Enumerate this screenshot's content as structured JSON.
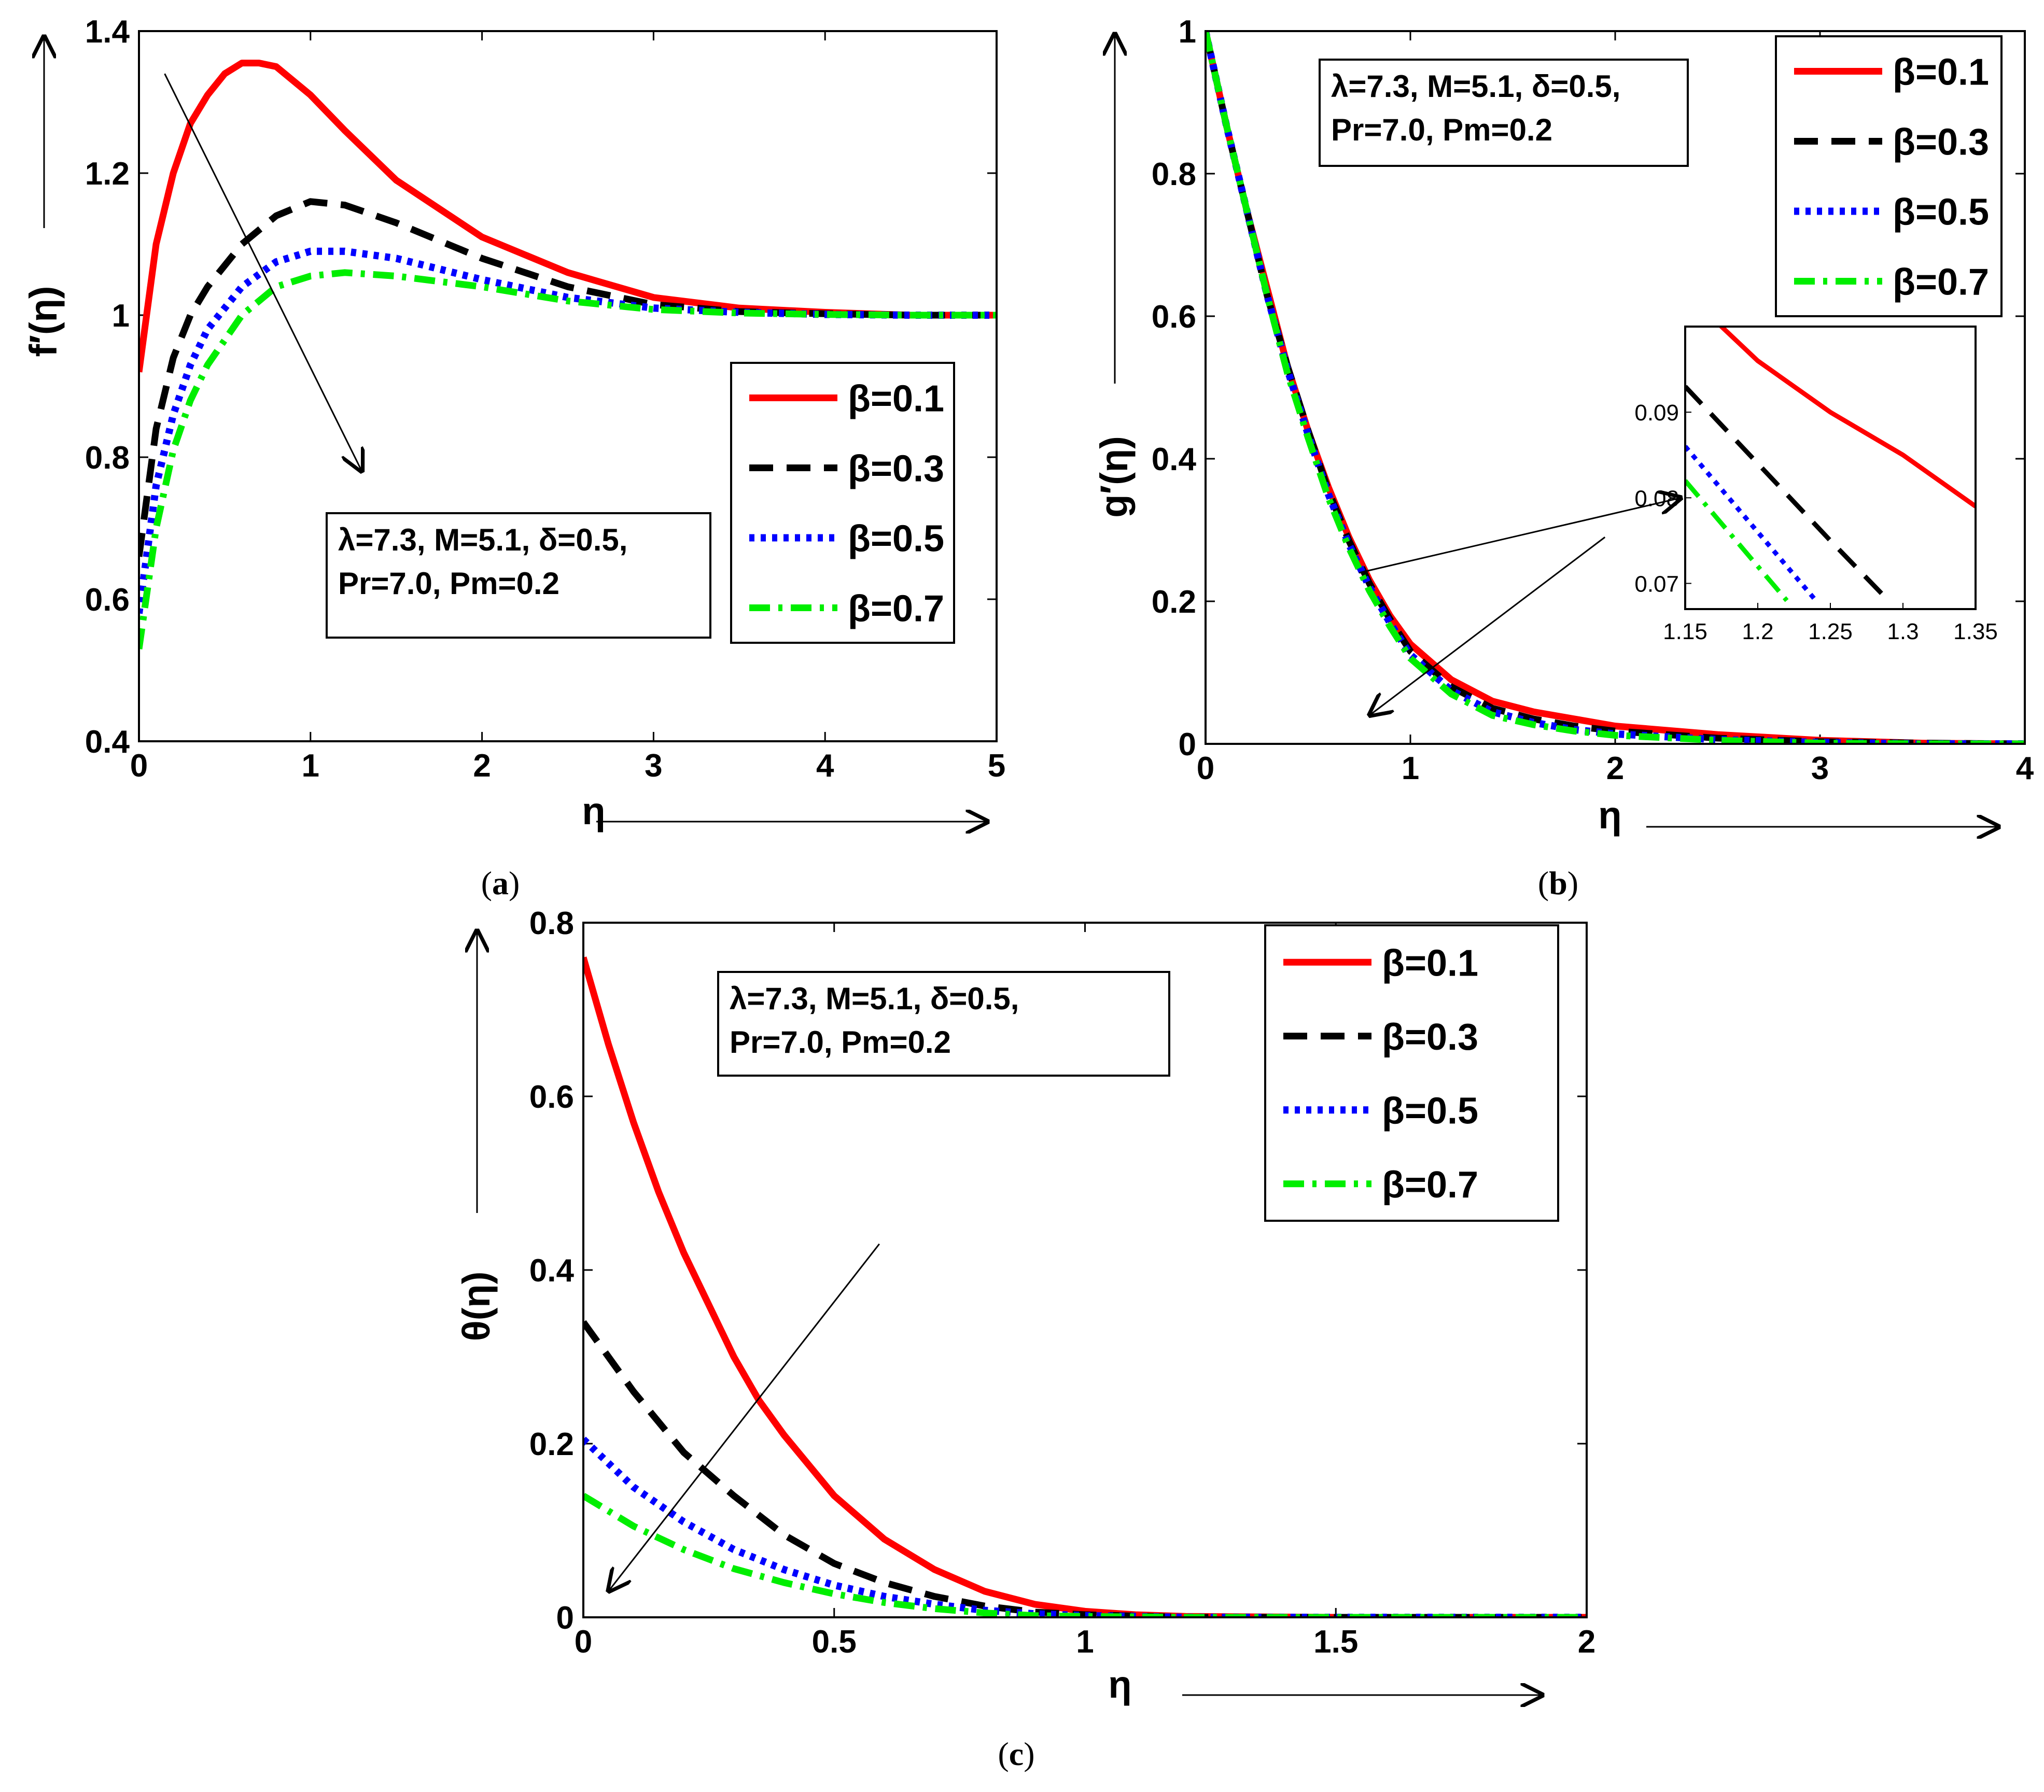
{
  "colors": {
    "beta1": "#ff0000",
    "beta3": "#000000",
    "beta5": "#0000ff",
    "beta7": "#00ee00"
  },
  "chart_data": [
    {
      "id": "a",
      "type": "line",
      "caption_letter": "a",
      "ylabel": "f′(η)",
      "xlabel": "η",
      "xlim": [
        0,
        5
      ],
      "ylim": [
        0.4,
        1.4
      ],
      "xticks": [
        "0",
        "1",
        "2",
        "3",
        "4",
        "5"
      ],
      "yticks": [
        "0.4",
        "0.6",
        "0.8",
        "1",
        "1.2",
        "1.4"
      ],
      "annotation": [
        "λ=7.3, M=5.1, δ=0.5,",
        "Pr=7.0, Pm=0.2"
      ],
      "series": [
        {
          "name": "β=0.1",
          "style": "solid",
          "color": "#ff0000",
          "x": [
            0,
            0.1,
            0.2,
            0.3,
            0.4,
            0.5,
            0.6,
            0.7,
            0.8,
            1.0,
            1.2,
            1.5,
            2.0,
            2.5,
            3.0,
            3.5,
            4.0,
            4.5,
            5.0
          ],
          "y": [
            0.92,
            1.1,
            1.2,
            1.27,
            1.31,
            1.34,
            1.355,
            1.355,
            1.35,
            1.31,
            1.26,
            1.19,
            1.11,
            1.06,
            1.025,
            1.01,
            1.004,
            1.0,
            1.0
          ]
        },
        {
          "name": "β=0.3",
          "style": "dashed",
          "color": "#000000",
          "x": [
            0,
            0.1,
            0.2,
            0.3,
            0.4,
            0.6,
            0.8,
            1.0,
            1.2,
            1.5,
            2.0,
            2.5,
            3.0,
            3.5,
            4.0,
            4.5,
            5.0
          ],
          "y": [
            0.66,
            0.84,
            0.94,
            1.0,
            1.04,
            1.1,
            1.14,
            1.16,
            1.155,
            1.13,
            1.08,
            1.04,
            1.015,
            1.005,
            1.002,
            1.0,
            1.0
          ]
        },
        {
          "name": "β=0.5",
          "style": "dotted",
          "color": "#0000ff",
          "x": [
            0,
            0.1,
            0.2,
            0.3,
            0.4,
            0.6,
            0.8,
            1.0,
            1.2,
            1.5,
            2.0,
            2.5,
            3.0,
            3.5,
            4.0,
            4.5,
            5.0
          ],
          "y": [
            0.58,
            0.76,
            0.86,
            0.93,
            0.98,
            1.04,
            1.075,
            1.09,
            1.09,
            1.08,
            1.05,
            1.025,
            1.01,
            1.004,
            1.001,
            1.0,
            1.0
          ]
        },
        {
          "name": "β=0.7",
          "style": "dashdot",
          "color": "#00ee00",
          "x": [
            0,
            0.1,
            0.2,
            0.3,
            0.4,
            0.6,
            0.8,
            1.0,
            1.2,
            1.5,
            2.0,
            2.5,
            3.0,
            3.5,
            4.0,
            4.5,
            5.0
          ],
          "y": [
            0.53,
            0.7,
            0.81,
            0.88,
            0.93,
            1.0,
            1.04,
            1.055,
            1.06,
            1.055,
            1.04,
            1.02,
            1.008,
            1.003,
            1.001,
            1.0,
            1.0
          ]
        }
      ],
      "trend_arrow": {
        "from": [
          0.15,
          1.34
        ],
        "to": [
          1.3,
          0.78
        ]
      }
    },
    {
      "id": "b",
      "type": "line",
      "caption_letter": "b",
      "ylabel": "g′(η)",
      "xlabel": "η",
      "xlim": [
        0,
        4
      ],
      "ylim": [
        0,
        1
      ],
      "xticks": [
        "0",
        "1",
        "2",
        "3",
        "4"
      ],
      "yticks": [
        "0",
        "0.2",
        "0.4",
        "0.6",
        "0.8",
        "1"
      ],
      "annotation": [
        "λ=7.3, M=5.1, δ=0.5,",
        "Pr=7.0, Pm=0.2"
      ],
      "series": [
        {
          "name": "β=0.1",
          "style": "solid",
          "color": "#ff0000",
          "x": [
            0,
            0.1,
            0.2,
            0.3,
            0.4,
            0.5,
            0.6,
            0.7,
            0.8,
            0.9,
            1.0,
            1.2,
            1.4,
            1.6,
            1.8,
            2.0,
            2.5,
            3.0,
            3.5,
            4.0
          ],
          "y": [
            1.0,
            0.87,
            0.75,
            0.64,
            0.53,
            0.44,
            0.36,
            0.29,
            0.23,
            0.18,
            0.14,
            0.09,
            0.06,
            0.045,
            0.035,
            0.025,
            0.013,
            0.005,
            0.001,
            0.0
          ]
        },
        {
          "name": "β=0.3",
          "style": "dashed",
          "color": "#000000",
          "x": [
            0,
            0.1,
            0.2,
            0.3,
            0.4,
            0.5,
            0.6,
            0.7,
            0.8,
            0.9,
            1.0,
            1.2,
            1.4,
            1.6,
            1.8,
            2.0,
            2.5,
            3.0,
            3.5,
            4.0
          ],
          "y": [
            1.0,
            0.87,
            0.75,
            0.63,
            0.53,
            0.44,
            0.355,
            0.285,
            0.225,
            0.175,
            0.13,
            0.08,
            0.05,
            0.035,
            0.025,
            0.018,
            0.008,
            0.003,
            0.001,
            0.0
          ]
        },
        {
          "name": "β=0.5",
          "style": "dotted",
          "color": "#0000ff",
          "x": [
            0,
            0.1,
            0.2,
            0.3,
            0.4,
            0.5,
            0.6,
            0.7,
            0.8,
            0.9,
            1.0,
            1.2,
            1.4,
            1.6,
            1.8,
            2.0,
            2.5,
            3.0,
            3.5,
            4.0
          ],
          "y": [
            1.0,
            0.87,
            0.75,
            0.63,
            0.525,
            0.435,
            0.35,
            0.28,
            0.22,
            0.17,
            0.125,
            0.075,
            0.045,
            0.03,
            0.02,
            0.014,
            0.006,
            0.002,
            0.0,
            0.0
          ]
        },
        {
          "name": "β=0.7",
          "style": "dashdot",
          "color": "#00ee00",
          "x": [
            0,
            0.1,
            0.2,
            0.3,
            0.4,
            0.5,
            0.6,
            0.7,
            0.8,
            0.9,
            1.0,
            1.2,
            1.4,
            1.6,
            1.8,
            2.0,
            2.5,
            3.0,
            3.5,
            4.0
          ],
          "y": [
            1.0,
            0.87,
            0.75,
            0.63,
            0.52,
            0.43,
            0.345,
            0.275,
            0.215,
            0.165,
            0.12,
            0.07,
            0.04,
            0.027,
            0.018,
            0.012,
            0.005,
            0.001,
            0.0,
            0.0
          ]
        }
      ],
      "inset": {
        "xlim": [
          1.15,
          1.35
        ],
        "ylim": [
          0.067,
          0.1
        ],
        "xticks": [
          "1.15",
          "1.2",
          "1.25",
          "1.3",
          "1.35"
        ],
        "yticks": [
          "0.07",
          "0.08",
          "0.09"
        ],
        "series": [
          {
            "name": "β=0.1",
            "x": [
              1.15,
              1.2,
              1.25,
              1.3,
              1.35
            ],
            "y": [
              0.104,
              0.096,
              0.09,
              0.085,
              0.079
            ]
          },
          {
            "name": "β=0.3",
            "x": [
              1.15,
              1.2,
              1.25,
              1.29
            ],
            "y": [
              0.093,
              0.084,
              0.075,
              0.068
            ]
          },
          {
            "name": "β=0.5",
            "x": [
              1.15,
              1.2,
              1.24
            ],
            "y": [
              0.086,
              0.076,
              0.068
            ]
          },
          {
            "name": "β=0.7",
            "x": [
              1.15,
              1.19,
              1.22
            ],
            "y": [
              0.082,
              0.074,
              0.068
            ]
          }
        ]
      },
      "zoom_pointer": {
        "from": [
          0.75,
          0.24
        ],
        "to_inset": [
          1.15,
          0.08
        ]
      },
      "trend_arrow": {
        "from": [
          1.95,
          0.29
        ],
        "to": [
          0.8,
          0.04
        ]
      }
    },
    {
      "id": "c",
      "type": "line",
      "caption_letter": "c",
      "ylabel": "θ(η)",
      "xlabel": "η",
      "xlim": [
        0,
        2
      ],
      "ylim": [
        0,
        0.8
      ],
      "xticks": [
        "0",
        "0.5",
        "1",
        "1.5",
        "2"
      ],
      "yticks": [
        "0",
        "0.2",
        "0.4",
        "0.6",
        "0.8"
      ],
      "annotation": [
        "λ=7.3, M=5.1, δ=0.5,",
        "Pr=7.0, Pm=0.2"
      ],
      "series": [
        {
          "name": "β=0.1",
          "style": "solid",
          "color": "#ff0000",
          "x": [
            0,
            0.05,
            0.1,
            0.15,
            0.2,
            0.25,
            0.3,
            0.35,
            0.4,
            0.5,
            0.6,
            0.7,
            0.8,
            0.9,
            1.0,
            1.1,
            1.2,
            1.5,
            2.0
          ],
          "y": [
            0.76,
            0.66,
            0.57,
            0.49,
            0.42,
            0.36,
            0.3,
            0.25,
            0.21,
            0.14,
            0.09,
            0.055,
            0.03,
            0.015,
            0.007,
            0.003,
            0.001,
            0.0,
            0.0
          ]
        },
        {
          "name": "β=0.3",
          "style": "dashed",
          "color": "#000000",
          "x": [
            0,
            0.1,
            0.2,
            0.3,
            0.4,
            0.5,
            0.6,
            0.7,
            0.8,
            0.9,
            1.0,
            1.2,
            1.5,
            2.0
          ],
          "y": [
            0.34,
            0.26,
            0.19,
            0.14,
            0.095,
            0.062,
            0.04,
            0.024,
            0.013,
            0.006,
            0.003,
            0.0,
            0.0,
            0.0
          ]
        },
        {
          "name": "β=0.5",
          "style": "dotted",
          "color": "#0000ff",
          "x": [
            0,
            0.1,
            0.2,
            0.3,
            0.4,
            0.5,
            0.6,
            0.7,
            0.8,
            0.9,
            1.0,
            1.2,
            1.5,
            2.0
          ],
          "y": [
            0.205,
            0.15,
            0.11,
            0.078,
            0.055,
            0.037,
            0.024,
            0.015,
            0.008,
            0.004,
            0.002,
            0.0,
            0.0,
            0.0
          ]
        },
        {
          "name": "β=0.7",
          "style": "dashdot",
          "color": "#00ee00",
          "x": [
            0,
            0.1,
            0.2,
            0.3,
            0.4,
            0.5,
            0.6,
            0.7,
            0.8,
            0.9,
            1.0,
            1.2,
            1.5,
            2.0
          ],
          "y": [
            0.14,
            0.105,
            0.078,
            0.056,
            0.04,
            0.027,
            0.017,
            0.01,
            0.005,
            0.002,
            0.001,
            0.0,
            0.0,
            0.0
          ]
        }
      ],
      "trend_arrow": {
        "from": [
          0.59,
          0.43
        ],
        "to": [
          0.05,
          0.03
        ]
      }
    }
  ]
}
